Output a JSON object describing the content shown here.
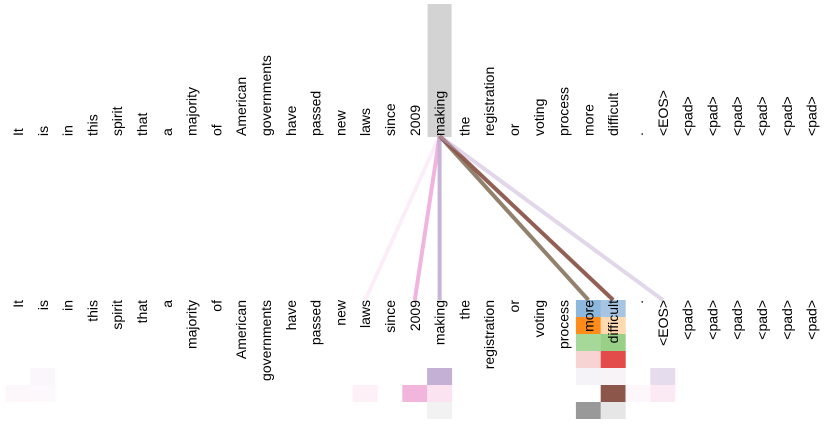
{
  "top_tokens": [
    "It",
    "is",
    "in",
    "this",
    "spirit",
    "that",
    "a",
    "majority",
    "of",
    "American",
    "governments",
    "have",
    "passed",
    "new",
    "laws",
    "since",
    "2009",
    "making",
    "the",
    "registration",
    "or",
    "voting",
    "process",
    "more",
    "difficult",
    ".",
    "<EOS>",
    "<pad>",
    "<pad>",
    "<pad>",
    "<pad>",
    "<pad>",
    "<pad>"
  ],
  "bottom_tokens": [
    "It",
    "is",
    "in",
    "this",
    "spirit",
    "that",
    "a",
    "majority",
    "of",
    "American",
    "governments",
    "have",
    "passed",
    "new",
    "laws",
    "since",
    "2009",
    "making",
    "the",
    "registration",
    "or",
    "voting",
    "process",
    "more",
    "difficult",
    ".",
    "<EOS>",
    "<pad>",
    "<pad>",
    "<pad>",
    "<pad>",
    "<pad>",
    "<pad>"
  ],
  "selected_index": 17,
  "highlight_color": "#d3d3d3",
  "attention_lines": [
    {
      "target": 14,
      "color": "#e377c2",
      "weight": 0.12
    },
    {
      "target": 16,
      "color": "#e377c2",
      "weight": 0.55
    },
    {
      "target": 17,
      "color": "#c5b0d5",
      "weight": 0.95
    },
    {
      "target": 23,
      "color": "#8c7a64",
      "weight": 0.95
    },
    {
      "target": 24,
      "color": "#8c564b",
      "weight": 0.95
    },
    {
      "target": 26,
      "color": "#c5b0d5",
      "weight": 0.5
    }
  ],
  "head_cells": [
    {
      "col": 23,
      "row": 0,
      "color": "#8bb8dc"
    },
    {
      "col": 23,
      "row": 1,
      "color": "#ff8c1a"
    },
    {
      "col": 23,
      "row": 2,
      "color": "#a6d89a"
    },
    {
      "col": 23,
      "row": 3,
      "color": "#f7d3d3"
    },
    {
      "col": 23,
      "row": 4,
      "color": "#f6f3f8"
    },
    {
      "col": 23,
      "row": 6,
      "color": "#999999"
    },
    {
      "col": 24,
      "row": 0,
      "color": "#a7c5e3"
    },
    {
      "col": 24,
      "row": 1,
      "color": "#ffd9b0"
    },
    {
      "col": 24,
      "row": 2,
      "color": "#98d087"
    },
    {
      "col": 24,
      "row": 3,
      "color": "#e34a4a"
    },
    {
      "col": 24,
      "row": 4,
      "color": "#f7f3f7"
    },
    {
      "col": 24,
      "row": 5,
      "color": "#8c564b"
    },
    {
      "col": 24,
      "row": 6,
      "color": "#e6e6e6"
    },
    {
      "col": 17,
      "row": 4,
      "color": "#c5b0d5"
    },
    {
      "col": 26,
      "row": 4,
      "color": "#e5ddee"
    },
    {
      "col": 17,
      "row": 6,
      "color": "#f2f2f2"
    },
    {
      "col": 16,
      "row": 5,
      "color": "#f2b6dc"
    },
    {
      "col": 17,
      "row": 5,
      "color": "#fbe3f1"
    },
    {
      "col": 14,
      "row": 5,
      "color": "#fdf0f7"
    },
    {
      "col": 26,
      "row": 5,
      "color": "#fbeaf4"
    },
    {
      "col": 25,
      "row": 5,
      "color": "#fdf6fa"
    },
    {
      "col": 1,
      "row": 4,
      "color": "#fbf6fb"
    },
    {
      "col": 0,
      "row": 5,
      "color": "#fdf7fb"
    },
    {
      "col": 1,
      "row": 5,
      "color": "#fdf8fc"
    }
  ]
}
